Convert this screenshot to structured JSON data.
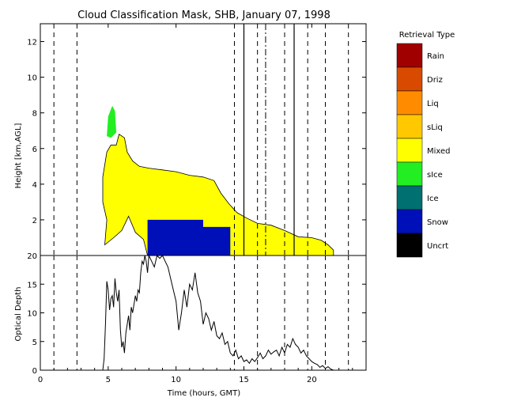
{
  "chart_data": [
    {
      "type": "heatmap",
      "title": "Cloud Classification Mask, SHB, January 07, 1998",
      "xlabel": "",
      "ylabel": "Height [km,AGL]",
      "xlim": [
        0,
        24
      ],
      "ylim": [
        0,
        13
      ],
      "xticks": [
        "0",
        "5",
        "10",
        "15",
        "20"
      ],
      "yticks": [
        "2",
        "4",
        "6",
        "8",
        "10",
        "12"
      ],
      "dashed_lines_x": [
        1.0,
        2.7,
        14.3,
        16.0,
        18.0,
        19.7,
        21.0,
        22.7
      ],
      "solid_lines_x": [
        15.0,
        18.7
      ],
      "dash_dot_lines_x": [
        16.6
      ],
      "legend": {
        "title": "Retrieval Type",
        "placement": "right",
        "entries": [
          {
            "label": "Rain",
            "color": "#A00000"
          },
          {
            "label": "Driz",
            "color": "#D84A00"
          },
          {
            "label": "Liq",
            "color": "#FF8C00"
          },
          {
            "label": "sLiq",
            "color": "#FFC800"
          },
          {
            "label": "Mixed",
            "color": "#FFFF00"
          },
          {
            "label": "sIce",
            "color": "#22EE22"
          },
          {
            "label": "Ice",
            "color": "#007070"
          },
          {
            "label": "Snow",
            "color": "#0010B8"
          },
          {
            "label": "Uncrt",
            "color": "#000000"
          }
        ]
      },
      "regions": [
        {
          "class": "Mixed",
          "outline": [
            [
              4.75,
              0.6
            ],
            [
              4.9,
              2.0
            ],
            [
              4.6,
              3.0
            ],
            [
              4.6,
              4.4
            ],
            [
              4.9,
              5.8
            ],
            [
              5.2,
              6.2
            ],
            [
              5.6,
              6.2
            ],
            [
              5.8,
              6.8
            ],
            [
              6.2,
              6.6
            ],
            [
              6.4,
              5.8
            ],
            [
              6.8,
              5.3
            ],
            [
              7.3,
              5.0
            ],
            [
              8.0,
              4.9
            ],
            [
              9.0,
              4.8
            ],
            [
              10.0,
              4.7
            ],
            [
              11.0,
              4.5
            ],
            [
              12.0,
              4.4
            ],
            [
              12.8,
              4.2
            ],
            [
              13.3,
              3.5
            ],
            [
              13.9,
              2.9
            ],
            [
              14.5,
              2.4
            ],
            [
              15.2,
              2.1
            ],
            [
              16.0,
              1.8
            ],
            [
              17.0,
              1.7
            ],
            [
              18.0,
              1.4
            ],
            [
              19.0,
              1.05
            ],
            [
              20.0,
              1.0
            ],
            [
              20.7,
              0.85
            ],
            [
              21.2,
              0.6
            ],
            [
              21.6,
              0.3
            ],
            [
              21.6,
              0.0
            ],
            [
              7.9,
              0.0
            ],
            [
              7.6,
              0.9
            ],
            [
              7.0,
              1.3
            ],
            [
              6.5,
              2.2
            ],
            [
              6.0,
              1.4
            ],
            [
              5.4,
              1.0
            ]
          ]
        },
        {
          "class": "Snow",
          "outline": [
            [
              7.9,
              0.0
            ],
            [
              7.9,
              2.0
            ],
            [
              12.0,
              2.0
            ],
            [
              12.0,
              1.6
            ],
            [
              14.0,
              1.6
            ],
            [
              14.0,
              0.0
            ]
          ]
        },
        {
          "class": "sIce",
          "outline": [
            [
              4.9,
              6.7
            ],
            [
              5.0,
              7.8
            ],
            [
              5.3,
              8.4
            ],
            [
              5.5,
              8.1
            ],
            [
              5.6,
              6.9
            ],
            [
              5.2,
              6.6
            ]
          ]
        }
      ]
    },
    {
      "type": "line",
      "title": "",
      "xlabel": "Time (hours, GMT)",
      "ylabel": "Optical Depth",
      "xlim": [
        0,
        24
      ],
      "ylim": [
        0,
        20
      ],
      "xticks": [
        "0",
        "5",
        "10",
        "15",
        "20"
      ],
      "yticks": [
        "0",
        "5",
        "10",
        "15",
        "20"
      ],
      "series": [
        {
          "x": [
            4.6,
            4.7,
            4.8,
            4.9,
            5.0,
            5.1,
            5.2,
            5.3,
            5.4,
            5.5,
            5.6,
            5.7,
            5.8,
            5.9,
            6.0,
            6.1,
            6.2,
            6.3,
            6.4,
            6.5,
            6.6,
            6.7,
            6.8,
            6.9,
            7.0,
            7.1,
            7.2,
            7.3,
            7.4,
            7.5,
            7.6,
            7.7,
            7.8,
            7.9,
            8.0,
            8.2,
            8.4,
            8.6,
            8.8,
            9.0,
            9.2,
            9.4,
            9.6,
            9.8,
            10.0,
            10.2,
            10.4,
            10.6,
            10.8,
            11.0,
            11.2,
            11.4,
            11.6,
            11.8,
            12.0,
            12.2,
            12.4,
            12.6,
            12.8,
            13.0,
            13.2,
            13.4,
            13.6,
            13.8,
            14.0,
            14.2,
            14.4,
            14.6,
            14.8,
            15.0,
            15.2,
            15.4,
            15.6,
            15.8,
            16.0,
            16.2,
            16.4,
            16.6,
            16.8,
            17.0,
            17.2,
            17.4,
            17.6,
            17.8,
            18.0,
            18.2,
            18.4,
            18.6,
            18.8,
            19.0,
            19.2,
            19.4,
            19.6,
            19.8,
            20.0,
            20.2,
            20.4,
            20.6,
            20.8,
            21.0,
            21.2,
            21.4,
            21.6
          ],
          "y": [
            0.0,
            2.0,
            8.0,
            15.5,
            14.0,
            10.5,
            12.5,
            13.0,
            11.0,
            16.0,
            13.5,
            12.0,
            14.0,
            7.0,
            4.0,
            5.0,
            3.0,
            6.5,
            8.0,
            9.5,
            7.0,
            11.0,
            10.0,
            11.5,
            13.0,
            12.0,
            14.0,
            13.5,
            17.0,
            19.0,
            18.5,
            20.0,
            19.0,
            17.0,
            20.0,
            19.0,
            18.0,
            20.0,
            19.5,
            20.0,
            19.0,
            18.0,
            16.0,
            14.0,
            12.0,
            7.0,
            10.0,
            14.0,
            11.0,
            15.0,
            14.0,
            17.0,
            13.5,
            12.0,
            8.0,
            10.0,
            9.0,
            7.0,
            8.5,
            6.0,
            5.5,
            6.5,
            4.5,
            5.0,
            3.0,
            2.5,
            3.5,
            2.0,
            2.5,
            1.5,
            1.8,
            1.2,
            2.0,
            1.5,
            2.2,
            3.0,
            2.0,
            2.5,
            3.5,
            2.8,
            3.2,
            3.5,
            2.5,
            4.0,
            3.0,
            4.5,
            4.0,
            5.5,
            4.5,
            4.0,
            3.0,
            3.5,
            2.5,
            2.0,
            1.5,
            1.2,
            1.0,
            0.5,
            0.8,
            0.3,
            0.6,
            0.2,
            0.0
          ]
        }
      ]
    }
  ]
}
